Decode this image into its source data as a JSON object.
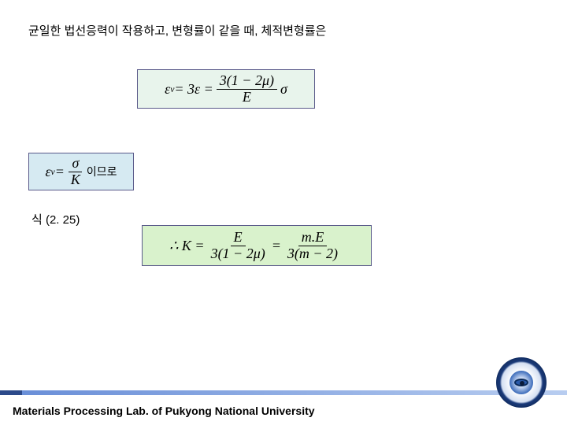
{
  "heading": "균일한 법선응력이 작용하고, 변형률이 같을 때, 체적변형률은",
  "eq_label": "식 (2. 25)",
  "formula1": {
    "lhs_symbol": "ε",
    "lhs_sub": "v",
    "mid": " = 3ε = ",
    "num": "3(1 − 2μ)",
    "den": "E",
    "tail": "σ"
  },
  "formula2": {
    "lhs_symbol": "ε",
    "lhs_sub": "v",
    "eq": " = ",
    "num": "σ",
    "den": "K",
    "tail_korean": "이므로"
  },
  "formula3": {
    "prefix": "∴ K = ",
    "num1": "E",
    "den1": "3(1 − 2μ)",
    "eq": " = ",
    "num2": "m.E",
    "den2": "3(m − 2)"
  },
  "footer": "Materials Processing Lab. of Pukyong National University",
  "colors": {
    "box1_bg": "#e8f4ec",
    "box2_bg": "#d6eaf2",
    "box3_bg": "#d9f2cc",
    "box_border": "#5a5a8a",
    "bar_dark": "#2c4a8a",
    "bar_light_from": "#6a8fd8",
    "bar_light_to": "#b8cdf0"
  }
}
